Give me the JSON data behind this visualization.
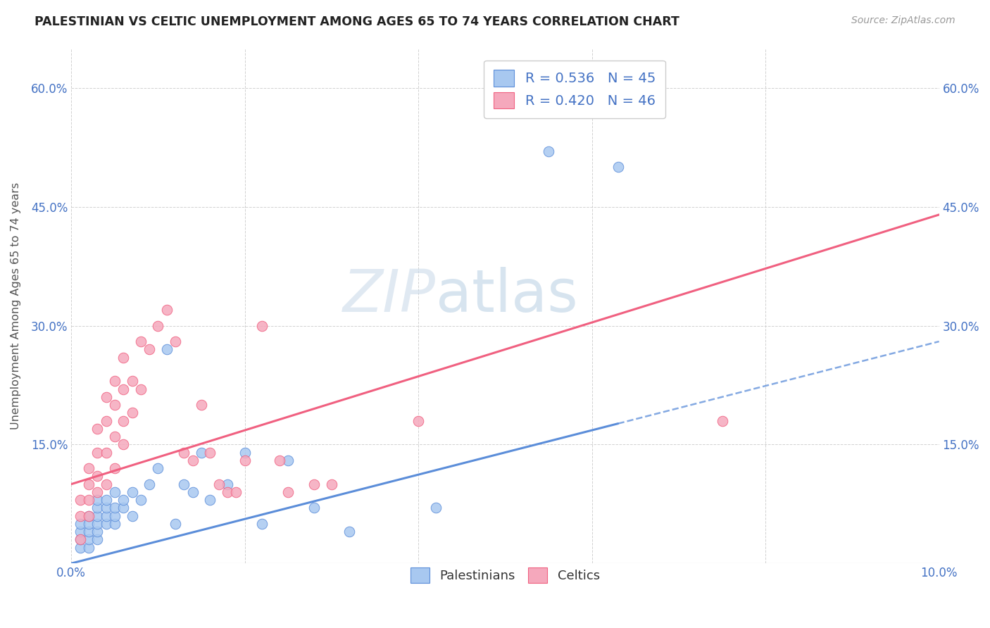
{
  "title": "PALESTINIAN VS CELTIC UNEMPLOYMENT AMONG AGES 65 TO 74 YEARS CORRELATION CHART",
  "source": "Source: ZipAtlas.com",
  "ylabel": "Unemployment Among Ages 65 to 74 years",
  "xlim": [
    0.0,
    0.1
  ],
  "ylim": [
    0.0,
    0.65
  ],
  "xtick_positions": [
    0.0,
    0.02,
    0.04,
    0.06,
    0.08,
    0.1
  ],
  "xtick_labels": [
    "0.0%",
    "",
    "",
    "",
    "",
    "10.0%"
  ],
  "ytick_positions": [
    0.0,
    0.15,
    0.3,
    0.45,
    0.6
  ],
  "ytick_labels": [
    "",
    "15.0%",
    "30.0%",
    "45.0%",
    "60.0%"
  ],
  "palestinian_color": "#A8C8F0",
  "celtic_color": "#F5A8BC",
  "line_blue": "#5B8DD9",
  "line_pink": "#F06080",
  "R_palestinian": 0.536,
  "N_palestinian": 45,
  "R_celtic": 0.42,
  "N_celtic": 46,
  "watermark_zip": "ZIP",
  "watermark_atlas": "atlas",
  "blue_line_intercept": 0.0,
  "blue_line_slope": 2.8,
  "pink_line_intercept": 0.1,
  "pink_line_slope": 3.4,
  "palestinian_x": [
    0.001,
    0.001,
    0.001,
    0.001,
    0.002,
    0.002,
    0.002,
    0.002,
    0.002,
    0.003,
    0.003,
    0.003,
    0.003,
    0.003,
    0.003,
    0.004,
    0.004,
    0.004,
    0.004,
    0.005,
    0.005,
    0.005,
    0.005,
    0.006,
    0.006,
    0.007,
    0.007,
    0.008,
    0.009,
    0.01,
    0.011,
    0.012,
    0.013,
    0.014,
    0.015,
    0.016,
    0.018,
    0.02,
    0.022,
    0.025,
    0.028,
    0.032,
    0.042,
    0.055,
    0.063
  ],
  "palestinian_y": [
    0.02,
    0.03,
    0.04,
    0.05,
    0.02,
    0.03,
    0.04,
    0.05,
    0.06,
    0.03,
    0.04,
    0.05,
    0.06,
    0.07,
    0.08,
    0.05,
    0.06,
    0.07,
    0.08,
    0.05,
    0.06,
    0.07,
    0.09,
    0.07,
    0.08,
    0.06,
    0.09,
    0.08,
    0.1,
    0.12,
    0.27,
    0.05,
    0.1,
    0.09,
    0.14,
    0.08,
    0.1,
    0.14,
    0.05,
    0.13,
    0.07,
    0.04,
    0.07,
    0.52,
    0.5
  ],
  "celtic_x": [
    0.001,
    0.001,
    0.001,
    0.002,
    0.002,
    0.002,
    0.002,
    0.003,
    0.003,
    0.003,
    0.003,
    0.004,
    0.004,
    0.004,
    0.004,
    0.005,
    0.005,
    0.005,
    0.005,
    0.006,
    0.006,
    0.006,
    0.006,
    0.007,
    0.007,
    0.008,
    0.008,
    0.009,
    0.01,
    0.011,
    0.012,
    0.013,
    0.014,
    0.015,
    0.016,
    0.017,
    0.018,
    0.019,
    0.02,
    0.022,
    0.024,
    0.025,
    0.028,
    0.03,
    0.04,
    0.075
  ],
  "celtic_y": [
    0.03,
    0.06,
    0.08,
    0.06,
    0.08,
    0.1,
    0.12,
    0.09,
    0.11,
    0.14,
    0.17,
    0.1,
    0.14,
    0.18,
    0.21,
    0.12,
    0.16,
    0.2,
    0.23,
    0.15,
    0.18,
    0.22,
    0.26,
    0.19,
    0.23,
    0.22,
    0.28,
    0.27,
    0.3,
    0.32,
    0.28,
    0.14,
    0.13,
    0.2,
    0.14,
    0.1,
    0.09,
    0.09,
    0.13,
    0.3,
    0.13,
    0.09,
    0.1,
    0.1,
    0.18,
    0.18
  ]
}
